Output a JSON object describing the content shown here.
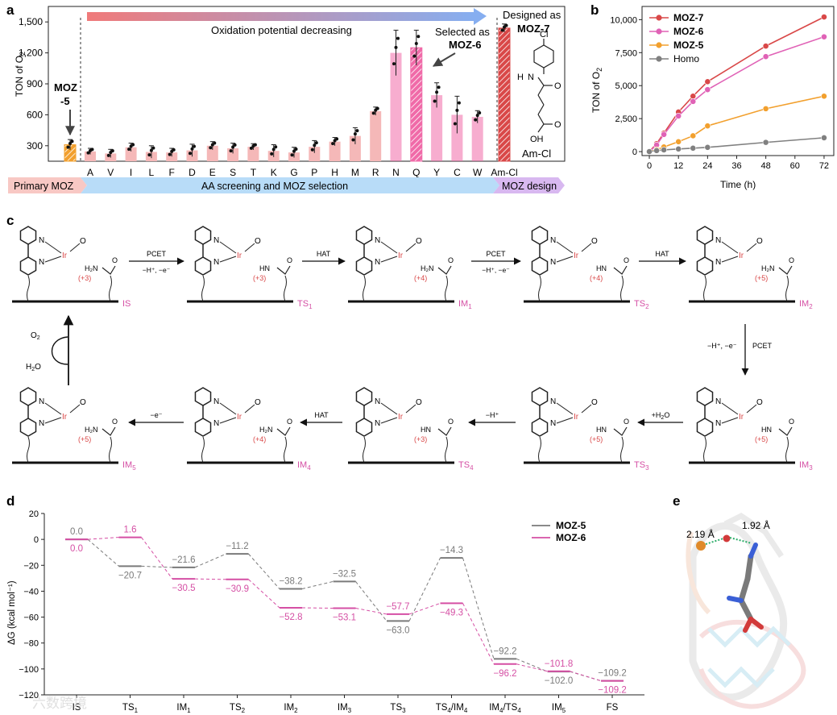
{
  "panel_labels": {
    "a": "a",
    "b": "b",
    "c": "c",
    "d": "d",
    "e": "e"
  },
  "colors": {
    "screen_bar": "#f5b8b8",
    "moz_bar": "#f06aa8",
    "moz5": "#f2a02e",
    "moz6": "#e062b6",
    "moz7": "#d94848",
    "homo": "#808080",
    "oxidation_start": "#f07a7a",
    "oxidation_end": "#86aef0",
    "stage_primary": "#f8c8c4",
    "stage_screen": "#b8dcf8",
    "stage_design": "#d8b8f0",
    "profile_moz5": "#7a7a7a",
    "profile_moz6": "#d54fa4",
    "oxidation_state": "#d94848",
    "state_label": "#d54fa4"
  },
  "panel_a": {
    "ylabel": "TON of O",
    "ylabel_sub": "2",
    "annotations": {
      "oxidation": "Oxidation potential decreasing",
      "moz5_line1": "MOZ",
      "moz5_line2": "-5",
      "selected_line1": "Selected as",
      "selected_line2": "MOZ-6",
      "designed_line1": "Designed as",
      "designed_line2": "MOZ-7",
      "molecule": "Am-Cl",
      "atom_cl": "Cl",
      "atom_h": "H",
      "atom_n": "N",
      "atom_o": "O",
      "atom_oh": "OH"
    },
    "stages": [
      "Primary MOZ",
      "AA screening and MOZ selection",
      "MOZ design"
    ],
    "chart_data": {
      "type": "bar",
      "categories": [
        "",
        "A",
        "V",
        "I",
        "L",
        "F",
        "D",
        "E",
        "S",
        "T",
        "K",
        "G",
        "P",
        "H",
        "M",
        "R",
        "N",
        "Q",
        "Y",
        "C",
        "W",
        "Am-Cl"
      ],
      "values": [
        310,
        245,
        225,
        285,
        240,
        235,
        255,
        300,
        275,
        290,
        250,
        235,
        290,
        340,
        395,
        635,
        1200,
        1250,
        790,
        600,
        580,
        1440
      ],
      "errors": [
        50,
        30,
        40,
        40,
        60,
        40,
        60,
        40,
        50,
        30,
        60,
        50,
        60,
        40,
        80,
        40,
        220,
        170,
        120,
        180,
        60,
        40
      ],
      "yticks": [
        300,
        600,
        900,
        1200,
        1500
      ],
      "yticklabels": [
        "300",
        "600",
        "900",
        "1,200",
        "1,500"
      ],
      "ylim": [
        150,
        1650
      ]
    }
  },
  "panel_b": {
    "chart_data": {
      "type": "line",
      "xlabel": "Time (h)",
      "ylabel": "TON of O",
      "ylabel_sub": "2",
      "x": [
        0,
        3,
        6,
        12,
        18,
        24,
        48,
        72
      ],
      "xticks": [
        0,
        12,
        24,
        36,
        48,
        60,
        72
      ],
      "yticks": [
        0,
        2500,
        5000,
        7500,
        10000
      ],
      "yticklabels": [
        "0",
        "2,500",
        "5,000",
        "7,500",
        "10,000"
      ],
      "xlim": [
        -3,
        76
      ],
      "ylim": [
        -300,
        11000
      ],
      "legend": "top-left",
      "series": [
        {
          "name": "MOZ-7",
          "values": [
            0,
            600,
            1400,
            3000,
            4200,
            5300,
            8000,
            10200
          ]
        },
        {
          "name": "MOZ-6",
          "values": [
            0,
            500,
            1300,
            2700,
            3800,
            4700,
            7200,
            8700
          ]
        },
        {
          "name": "MOZ-5",
          "values": [
            0,
            150,
            350,
            750,
            1200,
            1950,
            3250,
            4200
          ]
        },
        {
          "name": "Homo",
          "values": [
            0,
            80,
            130,
            200,
            260,
            320,
            700,
            1050
          ]
        }
      ]
    }
  },
  "panel_c": {
    "steps": [
      "PCET",
      "HAT",
      "PCET",
      "HAT",
      "PCET",
      "+H",
      "−H⁺",
      "HAT",
      "−e⁻"
    ],
    "step_notes": [
      "−H⁺, −e⁻",
      "−H⁺, −e⁻",
      "−H⁺, −e⁻"
    ],
    "water_sub": "2",
    "water_suffix": "O",
    "states": [
      {
        "name": "IS",
        "sub": "",
        "ox": "(+3)"
      },
      {
        "name": "TS",
        "sub": "1",
        "ox": "(+3)"
      },
      {
        "name": "IM",
        "sub": "1",
        "ox": "(+4)"
      },
      {
        "name": "TS",
        "sub": "2",
        "ox": "(+4)"
      },
      {
        "name": "IM",
        "sub": "2",
        "ox": "(+5)"
      },
      {
        "name": "IM",
        "sub": "3",
        "ox": "(+5)"
      },
      {
        "name": "TS",
        "sub": "3",
        "ox": "(+5)"
      },
      {
        "name": "TS",
        "sub": "4",
        "ox": "(+3)"
      },
      {
        "name": "IM",
        "sub": "4",
        "ox": "(+4)"
      },
      {
        "name": "IM",
        "sub": "5",
        "ox": "(+5)"
      }
    ],
    "cycle_o2": "O",
    "cycle_o2_sub": "2",
    "cycle_h2o": "H",
    "cycle_h2o_sub": "2",
    "cycle_h2o_suffix": "O",
    "atoms": {
      "ir": "Ir",
      "n": "N",
      "o": "O",
      "h": "H",
      "hn": "HN",
      "h2n": "H₂N"
    }
  },
  "panel_d": {
    "chart_data": {
      "type": "line",
      "ylabel": "ΔG (kcal mol⁻¹)",
      "categories": [
        "IS",
        "TS",
        "IM",
        "TS",
        "IM",
        "IM",
        "TS",
        "TS",
        "IM",
        "IM",
        "FS"
      ],
      "category_subs": [
        "",
        "1",
        "1",
        "2",
        "2",
        "3",
        "3",
        "4",
        "4",
        "5",
        ""
      ],
      "category_suffix": [
        "",
        "",
        "",
        "",
        "",
        "",
        "",
        "/IM",
        "/TS",
        "",
        ""
      ],
      "category_suffix_subs": [
        "",
        "",
        "",
        "",
        "",
        "",
        "",
        "4",
        "4",
        "",
        ""
      ],
      "yticks": [
        20,
        0,
        -20,
        -40,
        -60,
        -80,
        -100,
        -120
      ],
      "yticklabels": [
        "20",
        "0",
        "−20",
        "−40",
        "−60",
        "−80",
        "−100",
        "−120"
      ],
      "ylim": [
        -120,
        20
      ],
      "legend": "top-right",
      "series": [
        {
          "name": "MOZ-5",
          "values": [
            0.0,
            -20.7,
            -21.6,
            -11.2,
            -38.2,
            -32.5,
            -63.0,
            -14.3,
            -92.2,
            -102.0,
            -109.2
          ],
          "labels": [
            "0.0",
            "−20.7",
            "−21.6",
            "−11.2",
            "−38.2",
            "−32.5",
            "−63.0",
            "−14.3",
            "−92.2",
            "−102.0",
            "−109.2"
          ]
        },
        {
          "name": "MOZ-6",
          "values": [
            0.0,
            1.6,
            -30.5,
            -30.9,
            -52.8,
            -53.1,
            -57.7,
            -49.3,
            -96.2,
            -101.8,
            -109.2
          ],
          "labels": [
            "0.0",
            "1.6",
            "−30.5",
            "−30.9",
            "−52.8",
            "−53.1",
            "−57.7",
            "−49.3",
            "−96.2",
            "−101.8",
            "−109.2"
          ]
        }
      ]
    }
  },
  "panel_e": {
    "distance1": "2.19 Å",
    "distance2": "1.92 Å"
  },
  "watermark": "六数跨境"
}
